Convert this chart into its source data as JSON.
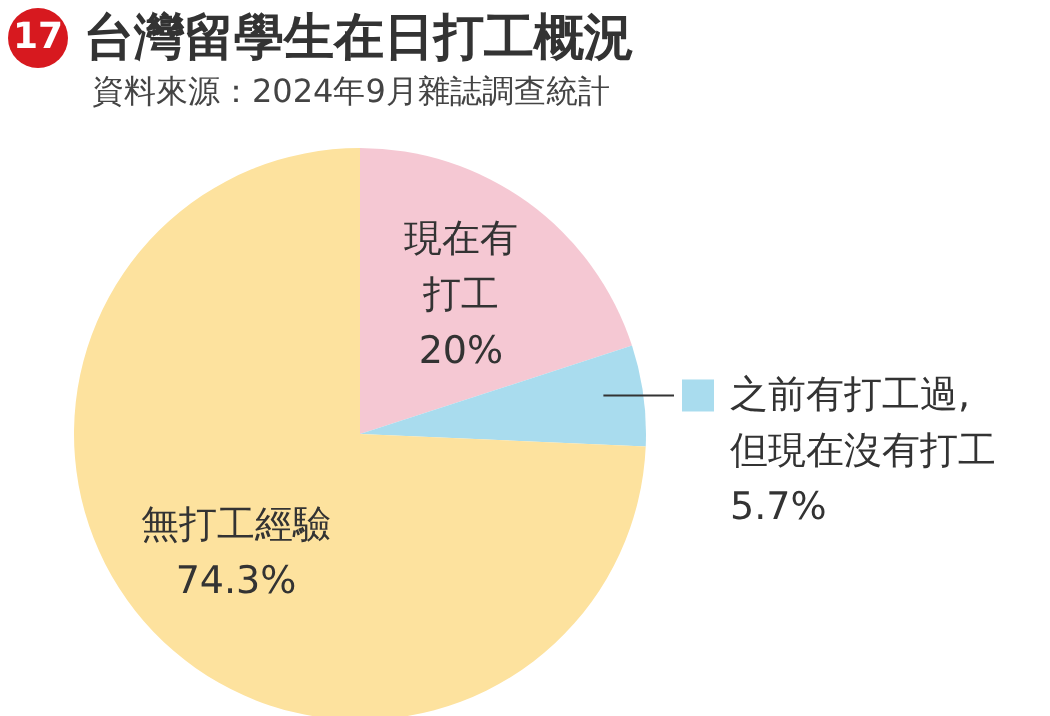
{
  "chart_data": {
    "type": "pie",
    "title": "台灣留學生在日打工概況",
    "subtitle": "資料來源：2024年9月雜誌調查統計",
    "annotations": [
      "17"
    ],
    "categories": [
      "現在有打工",
      "之前有打工過,但現在沒有打工",
      "無打工經驗"
    ],
    "values": [
      20,
      5.7,
      74.3
    ],
    "colors": [
      "#f5c8d3",
      "#a9dcee",
      "#fde29e"
    ],
    "value_labels": [
      "20%",
      "5.7%",
      "74.3%"
    ],
    "legend": "right"
  }
}
